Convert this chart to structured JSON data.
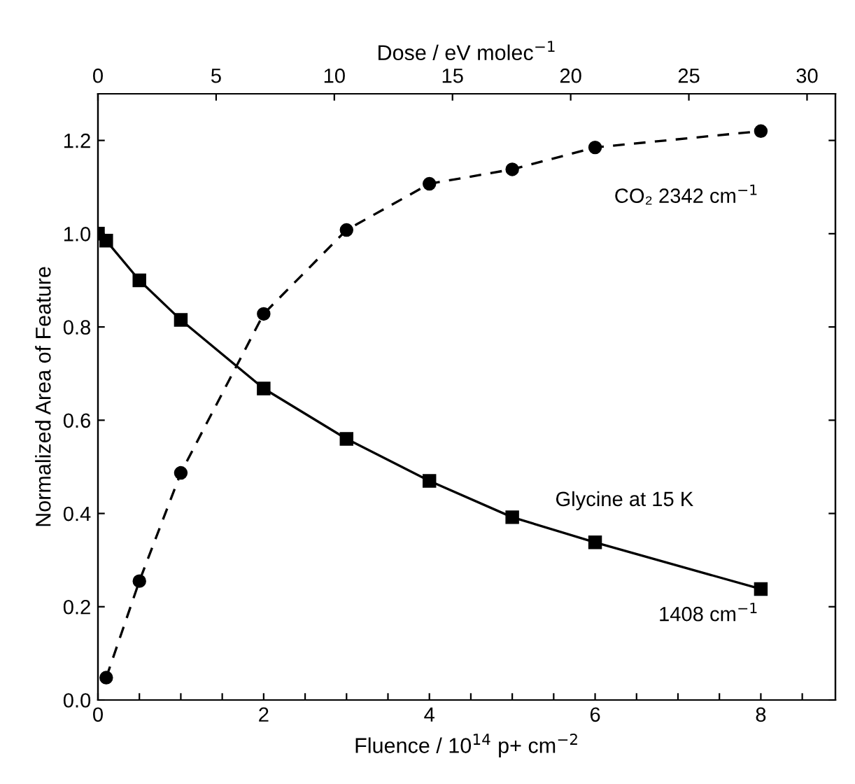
{
  "chart_data": {
    "type": "line",
    "xlabel": "Fluence / 10$^{14}$ p+ cm$^{−2}$",
    "x2label": "Dose / eV molec$^{−1}$",
    "ylabel": "Normalized Area of Feature",
    "xlim": [
      0,
      8.9
    ],
    "xticks": [
      0,
      {
        "value": 0.5,
        "label": null
      },
      {
        "value": 1,
        "label": null
      },
      {
        "value": 1.5,
        "label": null
      },
      2,
      {
        "value": 2.5,
        "label": null
      },
      {
        "value": 3,
        "label": null
      },
      {
        "value": 3.5,
        "label": null
      },
      4,
      {
        "value": 4.5,
        "label": null
      },
      {
        "value": 5,
        "label": null
      },
      {
        "value": 5.5,
        "label": null
      },
      6,
      {
        "value": 6.5,
        "label": null
      },
      {
        "value": 7,
        "label": null
      },
      {
        "value": 7.5,
        "label": null
      },
      8,
      {
        "value": 8.5,
        "label": null
      }
    ],
    "x2lim": [
      0,
      31.2
    ],
    "x2ticks": [
      0,
      5,
      10,
      15,
      20,
      25,
      30
    ],
    "ylim": [
      0,
      1.3
    ],
    "yticks": [
      {
        "value": 0,
        "label": "0.0"
      },
      0.2,
      0.4,
      0.6,
      0.8,
      {
        "value": 1,
        "label": "1.0"
      },
      1.2
    ],
    "grid": false,
    "legend": false,
    "series": [
      {
        "color": "#000000",
        "marker": "square",
        "line_style": "solid",
        "x": [
          0,
          0.1,
          0.5,
          1,
          2,
          3,
          4,
          5,
          6,
          8
        ],
        "values": [
          1.0,
          0.985,
          0.9,
          0.815,
          0.668,
          0.56,
          0.47,
          0.392,
          0.338,
          0.238
        ]
      },
      {
        "color": "#000000",
        "marker": "circle",
        "line_style": "dashed",
        "x": [
          0.1,
          0.5,
          1,
          2,
          3,
          4,
          5,
          6,
          8
        ],
        "values": [
          0.048,
          0.255,
          0.487,
          0.828,
          1.008,
          1.107,
          1.138,
          1.185,
          1.22
        ]
      }
    ],
    "annotations": [
      "CO₂ 2342 cm$^{−1}$",
      "Glycine at 15 K",
      "1408 cm$^{−1}$"
    ]
  }
}
